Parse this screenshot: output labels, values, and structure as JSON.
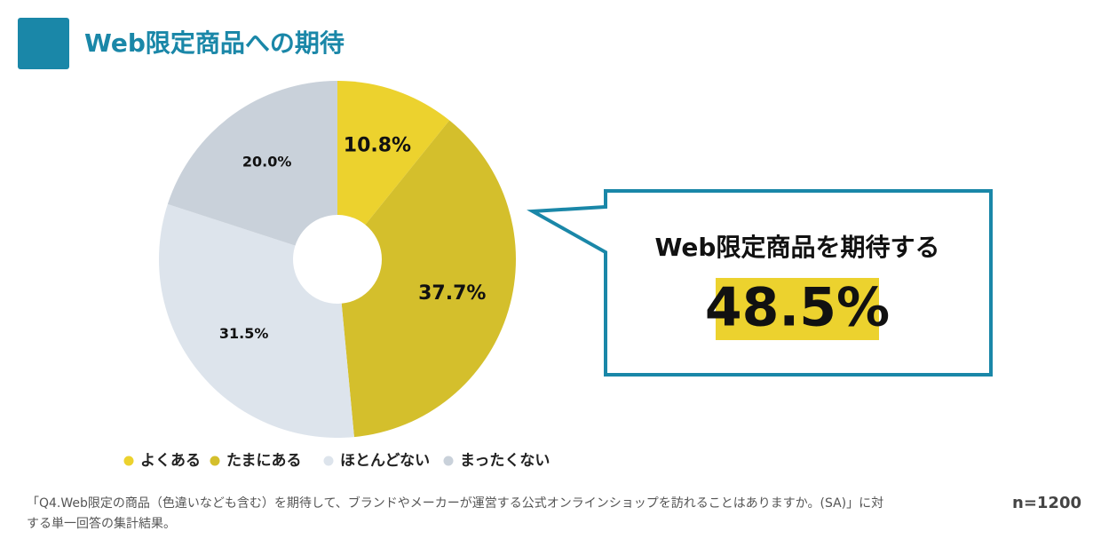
{
  "chart_data": {
    "type": "pie",
    "title": "Web限定商品への期待",
    "categories": [
      "よくある",
      "たまにある",
      "ほとんどない",
      "まったくない"
    ],
    "values": [
      10.8,
      37.7,
      31.5,
      20.0
    ],
    "value_labels": [
      "10.8%",
      "37.7%",
      "31.5%",
      "20.0%"
    ],
    "colors": [
      "#ecd22e",
      "#d4bf2c",
      "#dde4ec",
      "#c9d1da"
    ],
    "legend": "bottom",
    "callout": {
      "label": "Web限定商品を期待する",
      "value": "48.5%"
    },
    "note_lines": [
      "「Q4.Web限定の商品（色違いなども含む）を期待して、ブランドやメーカーが運営する公式オンラインショップを訪れることはありますか。(SA)」に対",
      "する単一回答の集計結果。"
    ],
    "sample": "n=1200"
  }
}
